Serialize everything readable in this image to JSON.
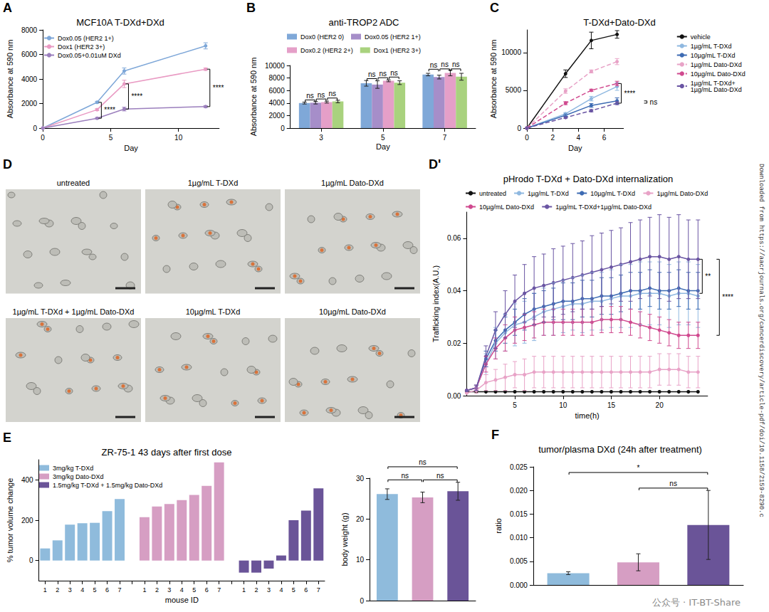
{
  "chart_data": [
    {
      "panel": "A",
      "type": "line",
      "title": "MCF10A T-DXd+DXd",
      "x_label": "Day",
      "y_label": "Absorbance at 590 nm",
      "x": [
        0,
        4,
        6,
        12
      ],
      "xlim": [
        0,
        13
      ],
      "xticks": [
        0,
        5,
        10
      ],
      "ylim": [
        0,
        8000
      ],
      "yticks": [
        0,
        2000,
        4000,
        6000,
        8000
      ],
      "grid": false,
      "legend": "top-left",
      "marker": "circle",
      "series": [
        {
          "name": "Dox0.05 (HER2 1+)",
          "color": "#7ea7d8",
          "values": [
            0,
            2100,
            4650,
            6700
          ],
          "errors": [
            0,
            80,
            250,
            250
          ]
        },
        {
          "name": "Dox1 (HER2 3+)",
          "color": "#e99ac3",
          "values": [
            0,
            1500,
            3600,
            4800
          ],
          "errors": [
            0,
            80,
            300,
            100
          ]
        },
        {
          "name": "Dox0.05+0.01uM DXd",
          "color": "#9b7fbd",
          "values": [
            0,
            800,
            1550,
            1750
          ],
          "errors": [
            0,
            60,
            150,
            80
          ]
        }
      ],
      "annotations": [
        {
          "x": 4,
          "y1": 800,
          "y2": 2100,
          "text": "****"
        },
        {
          "x": 6,
          "y1": 1550,
          "y2": 3600,
          "text": "****"
        },
        {
          "x": 12,
          "y1": 1750,
          "y2": 4800,
          "text": "****"
        }
      ]
    },
    {
      "panel": "B",
      "type": "bar",
      "title": "anti-TROP2 ADC",
      "x_label": "Day",
      "y_label": "Absorbance at 590 nm",
      "categories": [
        "3",
        "5",
        "7"
      ],
      "ylim": [
        0,
        10000
      ],
      "yticks": [
        0,
        2000,
        4000,
        6000,
        8000,
        10000
      ],
      "grid": false,
      "legend": "top",
      "series": [
        {
          "name": "Dox0 (HER2 0)",
          "color": "#7fa8d8",
          "values": [
            4000,
            7150,
            8550
          ],
          "errors": [
            150,
            450,
            200
          ]
        },
        {
          "name": "Dox0.05 (HER2 1+)",
          "color": "#a68ec9",
          "values": [
            4050,
            6950,
            8150
          ],
          "errors": [
            200,
            600,
            300
          ]
        },
        {
          "name": "Dox0.2 (HER2 2+)",
          "color": "#e59fc8",
          "values": [
            4150,
            7550,
            8800
          ],
          "errors": [
            150,
            150,
            450
          ]
        },
        {
          "name": "Dox1 (HER2 3+)",
          "color": "#a9d27e",
          "values": [
            4250,
            7250,
            8200
          ],
          "errors": [
            200,
            300,
            550
          ]
        }
      ],
      "annotations": [
        {
          "category": 0,
          "series": [
            0,
            1
          ],
          "y": 4500,
          "text": "ns"
        },
        {
          "category": 0,
          "series": [
            1,
            2
          ],
          "y": 4650,
          "text": "ns"
        },
        {
          "category": 0,
          "series": [
            2,
            3
          ],
          "y": 4800,
          "text": "ns"
        },
        {
          "category": 1,
          "series": [
            0,
            1
          ],
          "y": 7900,
          "text": "ns"
        },
        {
          "category": 1,
          "series": [
            1,
            2
          ],
          "y": 8050,
          "text": "ns"
        },
        {
          "category": 1,
          "series": [
            2,
            3
          ],
          "y": 8150,
          "text": "ns"
        },
        {
          "category": 2,
          "series": [
            0,
            1
          ],
          "y": 9400,
          "text": "ns"
        },
        {
          "category": 2,
          "series": [
            1,
            2
          ],
          "y": 9450,
          "text": "ns"
        },
        {
          "category": 2,
          "series": [
            2,
            3
          ],
          "y": 9450,
          "text": "ns"
        }
      ]
    },
    {
      "panel": "C",
      "type": "line",
      "title": "T-DXd+Dato-DXd",
      "x_label": "Day",
      "y_label": "Absorbance at 590 nm",
      "x": [
        0,
        3,
        5,
        7
      ],
      "xlim": [
        0,
        7.5
      ],
      "xticks": [
        0,
        2,
        4,
        6
      ],
      "ylim": [
        0,
        13000
      ],
      "yticks": [
        0,
        5000,
        10000
      ],
      "grid": false,
      "legend": "right",
      "marker": "circle",
      "series": [
        {
          "name": "vehicle",
          "color": "#111111",
          "line_style": "solid",
          "values": [
            0,
            7200,
            11600,
            12400
          ],
          "errors": [
            0,
            500,
            1100,
            500
          ]
        },
        {
          "name": "1µg/mL T-DXd",
          "color": "#8fb8e0",
          "line_style": "solid",
          "values": [
            0,
            1900,
            3900,
            5500
          ],
          "errors": [
            0,
            150,
            300,
            500
          ]
        },
        {
          "name": "10µg/mL T-DXd",
          "color": "#3d6bb3",
          "line_style": "solid",
          "values": [
            0,
            1700,
            3000,
            3600
          ],
          "errors": [
            0,
            150,
            250,
            400
          ]
        },
        {
          "name": "1µg/mL Dato-DXd",
          "color": "#e8a3c7",
          "line_style": "dashed",
          "values": [
            0,
            4900,
            7500,
            8800
          ],
          "errors": [
            0,
            300,
            200,
            400
          ]
        },
        {
          "name": "10µg/mL Dato-DXd",
          "color": "#d04a8f",
          "line_style": "dashed",
          "values": [
            0,
            3300,
            5000,
            5900
          ],
          "errors": [
            0,
            200,
            150,
            300
          ]
        },
        {
          "name": "1µg/mL T-DXd+1µg/mL Dato-DXd",
          "color": "#6a55a3",
          "line_style": "dashed",
          "values": [
            0,
            1400,
            2300,
            3300
          ],
          "errors": [
            0,
            100,
            150,
            200
          ]
        }
      ],
      "annotations": [
        {
          "x": 7,
          "y1": 3300,
          "y2": 5900,
          "text": "****"
        },
        {
          "x": 7,
          "y1": 3300,
          "y2": 3600,
          "text": "ns"
        }
      ]
    },
    {
      "panel": "D'",
      "type": "line",
      "title": "pHrodo T-DXd + Dato-DXd internalization",
      "x_label": "time(h)",
      "y_label": "Trafficking index(A.U.)",
      "x": [
        0,
        1,
        2,
        3,
        4,
        5,
        6,
        7,
        8,
        9,
        10,
        11,
        12,
        13,
        14,
        15,
        16,
        17,
        18,
        19,
        20,
        21,
        22,
        23,
        24
      ],
      "xlim": [
        0,
        25
      ],
      "xticks": [
        5,
        10,
        15,
        20
      ],
      "ylim": [
        0,
        0.07
      ],
      "yticks": [
        {
          "value": 0,
          "label": "0.00"
        },
        0.02,
        0.04,
        0.06
      ],
      "grid": false,
      "legend": "top",
      "marker": "circle",
      "series": [
        {
          "name": "untreated",
          "color": "#111111",
          "values": [
            0.0015,
            0.0015,
            0.0015,
            0.0015,
            0.0015,
            0.0015,
            0.0015,
            0.0015,
            0.0015,
            0.0015,
            0.0015,
            0.0015,
            0.0015,
            0.0015,
            0.0015,
            0.0015,
            0.0015,
            0.0015,
            0.0015,
            0.0015,
            0.0015,
            0.0015,
            0.0015,
            0.0015,
            0.0015
          ]
        },
        {
          "name": "1µg/mL T-DXd",
          "color": "#8fb8e0",
          "values": [
            0.002,
            0.003,
            0.012,
            0.02,
            0.024,
            0.027,
            0.028,
            0.03,
            0.032,
            0.033,
            0.034,
            0.035,
            0.035,
            0.036,
            0.036,
            0.037,
            0.038,
            0.038,
            0.039,
            0.039,
            0.039,
            0.038,
            0.039,
            0.039,
            0.038
          ],
          "errors": [
            0,
            0.001,
            0.004,
            0.006,
            0.007,
            0.008,
            0.008,
            0.009,
            0.009,
            0.01,
            0.01,
            0.01,
            0.011,
            0.011,
            0.011,
            0.011,
            0.012,
            0.012,
            0.012,
            0.012,
            0.012,
            0.012,
            0.012,
            0.012,
            0.012
          ]
        },
        {
          "name": "10µg/mL T-DXd",
          "color": "#3d6bb3",
          "values": [
            0.002,
            0.003,
            0.014,
            0.021,
            0.025,
            0.028,
            0.031,
            0.033,
            0.034,
            0.035,
            0.036,
            0.036,
            0.037,
            0.037,
            0.038,
            0.038,
            0.039,
            0.04,
            0.04,
            0.041,
            0.04,
            0.04,
            0.041,
            0.04,
            0.04
          ],
          "errors": [
            0,
            0.001,
            0.003,
            0.004,
            0.005,
            0.005,
            0.006,
            0.006,
            0.006,
            0.006,
            0.007,
            0.007,
            0.007,
            0.007,
            0.007,
            0.007,
            0.007,
            0.007,
            0.007,
            0.007,
            0.007,
            0.007,
            0.007,
            0.007,
            0.007
          ]
        },
        {
          "name": "1µg/mL Dato-DXd",
          "color": "#e8a3c7",
          "values": [
            0.001,
            0.002,
            0.005,
            0.006,
            0.007,
            0.008,
            0.008,
            0.009,
            0.009,
            0.009,
            0.009,
            0.009,
            0.009,
            0.009,
            0.009,
            0.009,
            0.009,
            0.009,
            0.009,
            0.009,
            0.01,
            0.01,
            0.01,
            0.009,
            0.009
          ],
          "errors": [
            0,
            0.001,
            0.003,
            0.004,
            0.005,
            0.005,
            0.006,
            0.006,
            0.006,
            0.006,
            0.006,
            0.006,
            0.006,
            0.006,
            0.006,
            0.006,
            0.006,
            0.006,
            0.006,
            0.006,
            0.006,
            0.006,
            0.006,
            0.006,
            0.006
          ]
        },
        {
          "name": "10µg/mL Dato-DXd",
          "color": "#d04a8f",
          "values": [
            0.002,
            0.003,
            0.012,
            0.018,
            0.022,
            0.025,
            0.026,
            0.027,
            0.028,
            0.028,
            0.028,
            0.028,
            0.028,
            0.028,
            0.029,
            0.029,
            0.029,
            0.028,
            0.027,
            0.026,
            0.025,
            0.024,
            0.023,
            0.023,
            0.023
          ],
          "errors": [
            0,
            0.001,
            0.003,
            0.004,
            0.005,
            0.005,
            0.005,
            0.005,
            0.005,
            0.005,
            0.005,
            0.005,
            0.005,
            0.005,
            0.005,
            0.005,
            0.005,
            0.005,
            0.005,
            0.005,
            0.005,
            0.005,
            0.005,
            0.005,
            0.005
          ]
        },
        {
          "name": "1µg/mL T-DXd+1µg/mL Dato-DXd",
          "color": "#6a55a3",
          "values": [
            0.002,
            0.003,
            0.015,
            0.025,
            0.031,
            0.036,
            0.039,
            0.041,
            0.042,
            0.043,
            0.044,
            0.045,
            0.046,
            0.047,
            0.048,
            0.049,
            0.05,
            0.051,
            0.052,
            0.053,
            0.053,
            0.052,
            0.053,
            0.052,
            0.052
          ],
          "errors": [
            0,
            0.001,
            0.004,
            0.007,
            0.009,
            0.01,
            0.011,
            0.012,
            0.012,
            0.013,
            0.013,
            0.013,
            0.013,
            0.014,
            0.014,
            0.014,
            0.014,
            0.015,
            0.015,
            0.015,
            0.016,
            0.016,
            0.016,
            0.015,
            0.015
          ]
        }
      ],
      "annotations": [
        {
          "x": 24,
          "y1": 0.039,
          "y2": 0.052,
          "text": "**"
        },
        {
          "x": 24,
          "y1": 0.023,
          "y2": 0.052,
          "text": "****"
        }
      ]
    },
    {
      "panel": "E",
      "type": "bar",
      "title": "ZR-75-1 43 days after first dose",
      "x_label": "mouse ID",
      "y_label": "% tumor volume change",
      "categories": [
        "1",
        "2",
        "3",
        "4",
        "5",
        "6",
        "7",
        null,
        "1",
        "2",
        "3",
        "4",
        "5",
        "6",
        "7",
        null,
        "1",
        "2",
        "3",
        "4",
        "5",
        "6",
        "7"
      ],
      "ylim": [
        -100,
        500
      ],
      "yticks": [
        0,
        200,
        400
      ],
      "grid": false,
      "legend": "top-left",
      "series": [
        {
          "name": "3mg/kg T-DXd",
          "color": "#8fbbdc",
          "values": [
            60,
            100,
            178,
            185,
            187,
            245,
            305,
            null,
            null,
            null,
            null,
            null,
            null,
            null,
            null,
            null,
            null,
            null,
            null,
            null,
            null,
            null,
            null
          ]
        },
        {
          "name": "3mg/kg Dato-DXd",
          "color": "#d69ec3",
          "values": [
            null,
            null,
            null,
            null,
            null,
            null,
            null,
            null,
            215,
            268,
            280,
            300,
            325,
            370,
            487,
            null,
            null,
            null,
            null,
            null,
            null,
            null,
            null
          ]
        },
        {
          "name": "1.5mg/kg T-DXd + 1.5mg/kg Dato-DXd",
          "color": "#6a5498",
          "values": [
            null,
            null,
            null,
            null,
            null,
            null,
            null,
            null,
            null,
            null,
            null,
            null,
            null,
            null,
            null,
            null,
            -60,
            -60,
            -40,
            25,
            200,
            248,
            358
          ]
        }
      ]
    },
    {
      "type": "bar",
      "y_label": "body weight (g)",
      "categories": [
        null,
        null,
        null
      ],
      "values": [
        26.1,
        25.3,
        26.8
      ],
      "errors": [
        1.3,
        1.3,
        2.2
      ],
      "colors": [
        "#8fbbdc",
        "#d69ec3",
        "#6a5498"
      ],
      "ylim": [
        0,
        30
      ],
      "yticks": [
        0,
        10,
        20,
        30
      ],
      "grid": false,
      "tick_labels": "y",
      "annotations": [
        {
          "categories": [
            0,
            1
          ],
          "y": 29.6,
          "text": "ns"
        },
        {
          "categories": [
            1,
            2
          ],
          "y": 29.6,
          "text": "ns"
        },
        {
          "categories": [
            0,
            2
          ],
          "y": 32.8,
          "text": "ns"
        }
      ]
    },
    {
      "panel": "F",
      "type": "bar",
      "title": "tumor/plasma DXd (24h after treatment)",
      "y_label": "ratio",
      "categories": [
        null,
        null,
        null
      ],
      "values": [
        0.0025,
        0.0048,
        0.0127
      ],
      "errors": [
        0.0003,
        0.0018,
        0.0073
      ],
      "colors": [
        "#8fbbdc",
        "#d69ec3",
        "#6a5498"
      ],
      "ylim": [
        0,
        0.025
      ],
      "yticks": [
        {
          "value": 0,
          "label": "0.000"
        },
        0.005,
        {
          "value": 0.01,
          "label": "0.010"
        },
        0.015,
        {
          "value": 0.02,
          "label": "0.020"
        },
        0.025
      ],
      "grid": false,
      "tick_labels": "y",
      "annotations": [
        {
          "categories": [
            0,
            2
          ],
          "y": 0.0238,
          "text": "*"
        },
        {
          "categories": [
            1,
            2
          ],
          "y": 0.0205,
          "text": "ns"
        }
      ]
    }
  ],
  "image_panel": {
    "panel": "D",
    "labels": [
      "untreated",
      "1µg/mL T-DXd",
      "1µg/mL Dato-DXd",
      "1µg/mL T-DXd + 1µg/mL Dato-DXd",
      "10µg/mL T-DXd",
      "10µg/mL Dato-DXd"
    ]
  },
  "side_text": "Downloaded from https://aacrjournals.org/cancerdiscovery/article-pdf/doi/10.1158/2159-8290.c",
  "watermark": "公众号 · IT-BT-Share"
}
